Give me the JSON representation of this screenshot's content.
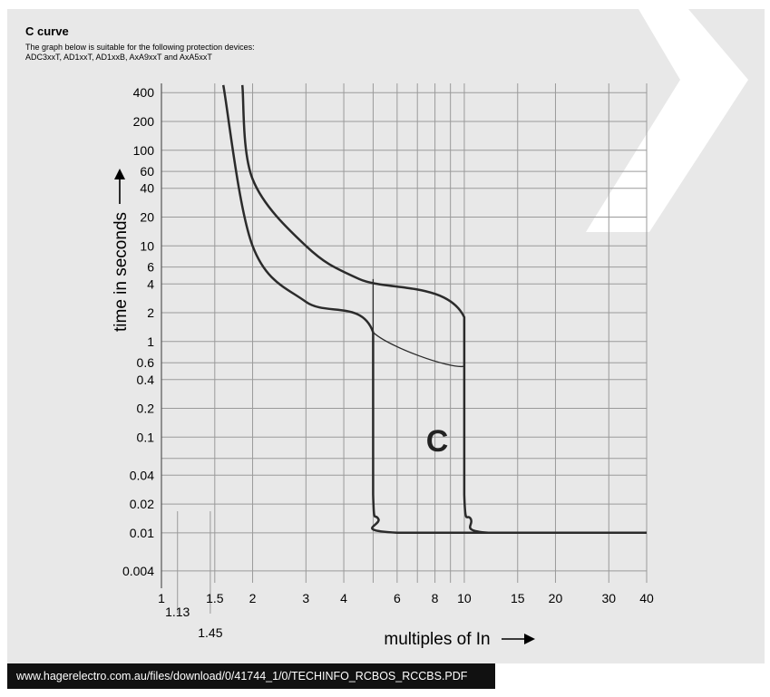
{
  "header": {
    "title": "C curve",
    "subtitle_line1": "The graph below is suitable for the following protection devices:",
    "subtitle_line2": "ADC3xxT, AD1xxT, AD1xxB, AxA9xxT and AxA5xxT"
  },
  "footer": {
    "url": "www.hagerelectro.com.au/files/download/0/41744_1/0/TECHINFO_RCBOS_RCCBS.PDF"
  },
  "colors": {
    "panel": "#e8e8e8",
    "grid": "#9a9a9a",
    "curve": "#2b2b2b",
    "chevron": "#ffffff",
    "footer_bg": "#111111"
  },
  "chart_data": {
    "type": "line",
    "xscale": "log",
    "yscale": "log",
    "xlim": [
      1,
      40
    ],
    "ylim": [
      0.003,
      500
    ],
    "grid": true,
    "xlabel": "multiples of In",
    "ylabel": "time in seconds",
    "xticks": [
      {
        "v": 1,
        "label": "1"
      },
      {
        "v": 1.5,
        "label": "1.5"
      },
      {
        "v": 2,
        "label": "2"
      },
      {
        "v": 3,
        "label": "3"
      },
      {
        "v": 4,
        "label": "4"
      },
      {
        "v": 6,
        "label": "6"
      },
      {
        "v": 8,
        "label": "8"
      },
      {
        "v": 10,
        "label": "10"
      },
      {
        "v": 15,
        "label": "15"
      },
      {
        "v": 20,
        "label": "20"
      },
      {
        "v": 30,
        "label": "30"
      },
      {
        "v": 40,
        "label": "40"
      }
    ],
    "xgrid": [
      1,
      1.5,
      2,
      3,
      4,
      5,
      6,
      7,
      8,
      9,
      10,
      15,
      20,
      30,
      40
    ],
    "xmarkers": [
      {
        "v": 1.13,
        "label": "1.13"
      },
      {
        "v": 1.45,
        "label": "1.45"
      }
    ],
    "yticks": [
      {
        "v": 400,
        "label": "400"
      },
      {
        "v": 200,
        "label": "200"
      },
      {
        "v": 100,
        "label": "100"
      },
      {
        "v": 60,
        "label": "60"
      },
      {
        "v": 40,
        "label": "40"
      },
      {
        "v": 20,
        "label": "20"
      },
      {
        "v": 10,
        "label": "10"
      },
      {
        "v": 6,
        "label": "6"
      },
      {
        "v": 4,
        "label": "4"
      },
      {
        "v": 2,
        "label": "2"
      },
      {
        "v": 1,
        "label": "1"
      },
      {
        "v": 0.6,
        "label": "0.6"
      },
      {
        "v": 0.4,
        "label": "0.4"
      },
      {
        "v": 0.2,
        "label": "0.2"
      },
      {
        "v": 0.1,
        "label": "0.1"
      },
      {
        "v": 0.04,
        "label": "0.04"
      },
      {
        "v": 0.02,
        "label": "0.02"
      },
      {
        "v": 0.01,
        "label": "0.01"
      },
      {
        "v": 0.004,
        "label": "0.004"
      }
    ],
    "ygrid": [
      0.004,
      0.01,
      0.02,
      0.04,
      0.06,
      0.1,
      0.2,
      0.4,
      0.6,
      1,
      2,
      4,
      6,
      10,
      20,
      40,
      60,
      100,
      200,
      400
    ],
    "annotations": [
      {
        "text": "C",
        "x": 6.5,
        "y": 0.08
      }
    ],
    "series": [
      {
        "id": "lower-band-outline",
        "width": 2.5,
        "points": [
          [
            1.6,
            480
          ],
          [
            2,
            10
          ],
          [
            3,
            2.6
          ],
          [
            5,
            1.25
          ],
          [
            5,
            0.025
          ],
          [
            5.2,
            0.014
          ],
          [
            6,
            0.01
          ],
          [
            40,
            0.01
          ]
        ]
      },
      {
        "id": "upper-band-outline",
        "width": 2.5,
        "points": [
          [
            1.85,
            480
          ],
          [
            2,
            50
          ],
          [
            3,
            10
          ],
          [
            4.5,
            4.5
          ],
          [
            10,
            1.8
          ],
          [
            10,
            0.025
          ],
          [
            10.5,
            0.014
          ],
          [
            12,
            0.01
          ],
          [
            40,
            0.01
          ]
        ]
      },
      {
        "id": "inner-boundary-line",
        "width": 1.3,
        "points": [
          [
            5,
            4.5
          ],
          [
            5,
            1.25
          ],
          [
            10,
            0.55
          ],
          [
            10,
            1.8
          ]
        ]
      }
    ]
  }
}
